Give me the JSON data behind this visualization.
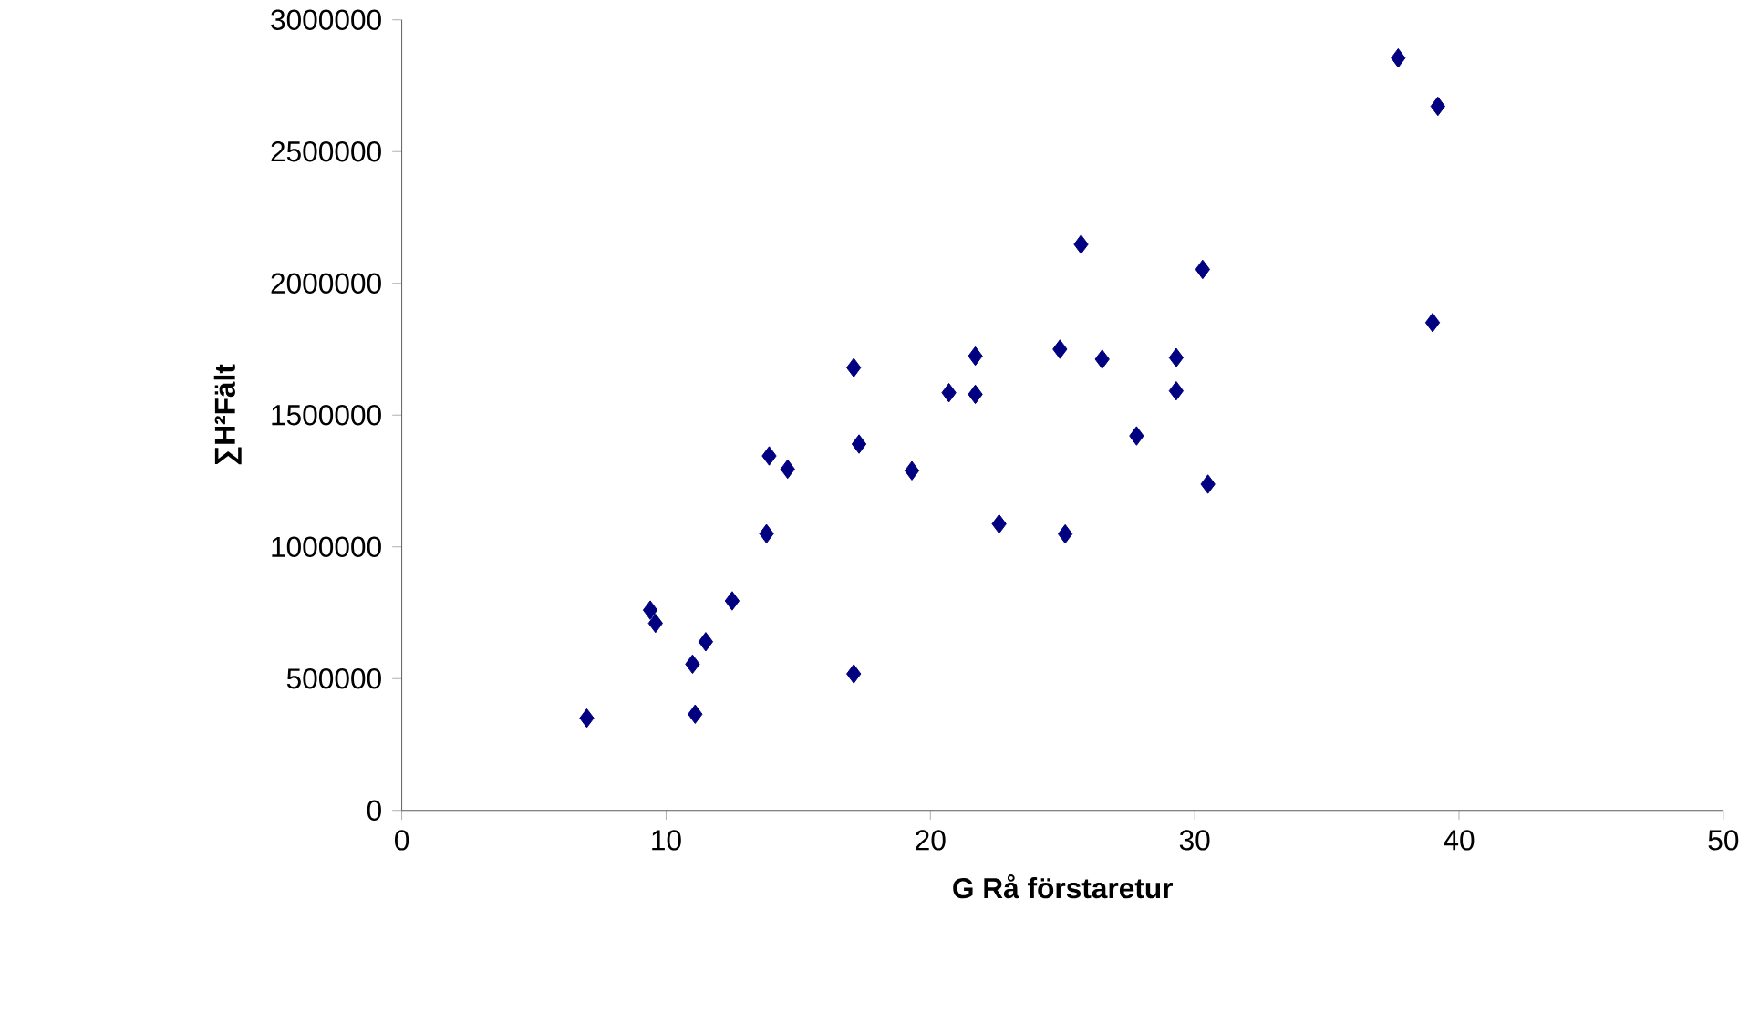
{
  "chart_data": {
    "type": "scatter",
    "xlabel": "G Rå förstaretur",
    "ylabel": "∑H²Fält",
    "marker": "diamond",
    "xlim": [
      0,
      50
    ],
    "ylim": [
      0,
      3000000
    ],
    "xticks": [
      0,
      10,
      20,
      30,
      40,
      50
    ],
    "yticks": [
      0,
      500000,
      1000000,
      1500000,
      2000000,
      2500000,
      3000000
    ],
    "series": [
      {
        "color": "#000080",
        "x": [
          7.0,
          9.4,
          9.6,
          11.0,
          11.1,
          11.5,
          12.5,
          13.8,
          13.9,
          14.6,
          17.1,
          17.3,
          17.1,
          19.3,
          20.7,
          21.7,
          21.7,
          22.6,
          24.9,
          25.1,
          25.7,
          26.5,
          27.8,
          29.3,
          29.3,
          30.3,
          30.5,
          37.7,
          39.2,
          39.0
        ],
        "values": [
          350000,
          760000,
          710000,
          555000,
          365000,
          640000,
          795000,
          1050000,
          1345000,
          1295000,
          1680000,
          1390000,
          518000,
          1289000,
          1585000,
          1724000,
          1579000,
          1087000,
          1750000,
          1049000,
          2148000,
          1712000,
          1421000,
          1718000,
          1592000,
          2053000,
          1238000,
          2855000,
          2672000,
          1851000
        ]
      }
    ]
  }
}
